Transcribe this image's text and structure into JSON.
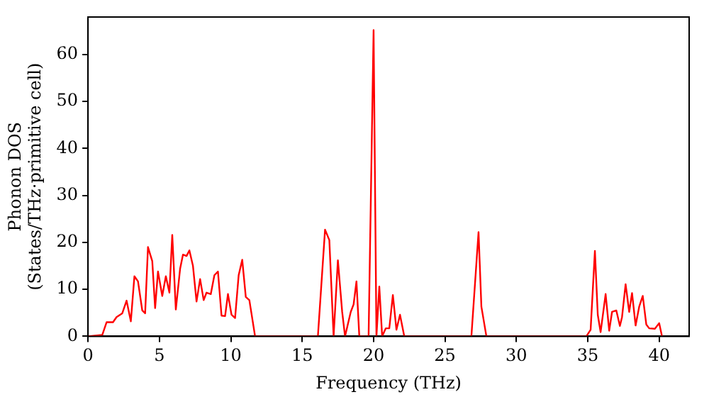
{
  "chart_data": {
    "type": "line",
    "xlabel": "Frequency (THz)",
    "ylabel": "Phonon DOS\n(States/THz·primitive cell)",
    "xlim": [
      0,
      42.1
    ],
    "ylim": [
      0,
      68
    ],
    "xticks": [
      0,
      5,
      10,
      15,
      20,
      25,
      30,
      35,
      40
    ],
    "yticks": [
      0,
      10,
      20,
      30,
      40,
      50,
      60
    ],
    "grid": false,
    "legend": false,
    "marker": "none",
    "line_style": "solid",
    "x": [
      0,
      1.0,
      1.3,
      1.75,
      2.0,
      2.4,
      2.7,
      3.0,
      3.25,
      3.5,
      3.8,
      4.0,
      4.2,
      4.5,
      4.7,
      4.9,
      5.2,
      5.45,
      5.7,
      5.9,
      6.15,
      6.45,
      6.65,
      6.9,
      7.1,
      7.35,
      7.6,
      7.85,
      8.1,
      8.3,
      8.6,
      8.85,
      9.1,
      9.35,
      9.6,
      9.8,
      10.05,
      10.3,
      10.55,
      10.8,
      11.05,
      11.3,
      11.7,
      16.1,
      16.6,
      16.9,
      17.2,
      17.5,
      17.8,
      18.0,
      18.4,
      18.6,
      18.8,
      19.0,
      19.65,
      20.0,
      20.2,
      20.4,
      20.6,
      20.85,
      21.1,
      21.35,
      21.6,
      21.85,
      22.15,
      26.85,
      27.35,
      27.55,
      27.9,
      34.9,
      35.2,
      35.5,
      35.7,
      35.9,
      36.25,
      36.5,
      36.7,
      37.0,
      37.25,
      37.4,
      37.65,
      37.9,
      38.1,
      38.35,
      38.6,
      38.85,
      39.1,
      39.3,
      39.7,
      40.0,
      40.2
    ],
    "series": [
      {
        "color": "#ff0000",
        "values": [
          0,
          0.3,
          3,
          3,
          4.1,
          4.9,
          7.6,
          3.2,
          12.8,
          11.7,
          5.5,
          4.9,
          19,
          16,
          6,
          13.8,
          8.6,
          12.8,
          9.3,
          21.6,
          5.7,
          14.4,
          17.4,
          17.1,
          18.3,
          15,
          7.4,
          12.2,
          7.7,
          9.3,
          9,
          13,
          13.8,
          4.4,
          4.3,
          9,
          4.6,
          3.9,
          13,
          16.3,
          8.4,
          7.7,
          0,
          0,
          22.7,
          20.5,
          0,
          16.2,
          5.2,
          0,
          5.2,
          6.8,
          11.7,
          0,
          0,
          65.2,
          0,
          10.6,
          0,
          1.7,
          1.7,
          8.8,
          1.4,
          4.6,
          0,
          0,
          22.2,
          6.3,
          0,
          0,
          1.4,
          18.2,
          4.6,
          0.9,
          9,
          1.2,
          5.2,
          5.5,
          2.2,
          4.1,
          11.1,
          5.2,
          9.2,
          2.3,
          6.3,
          8.6,
          2.5,
          1.7,
          1.6,
          2.8,
          0
        ]
      }
    ]
  }
}
